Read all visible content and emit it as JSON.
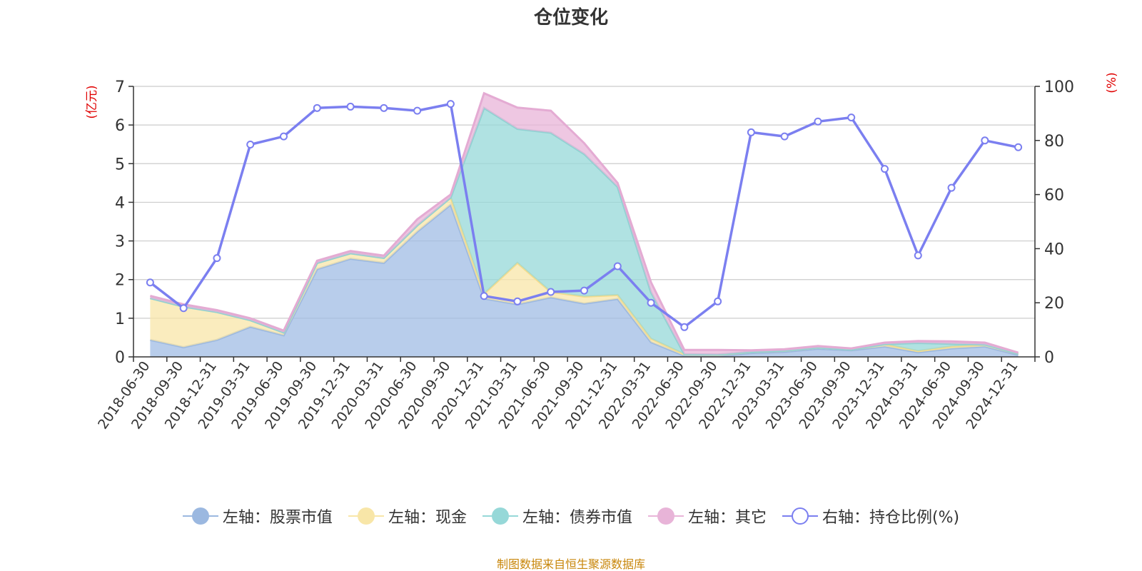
{
  "title": "仓位变化",
  "left_unit": "(亿元)",
  "right_unit": "(%)",
  "source_note": "制图数据来自恒生聚源数据库",
  "colors": {
    "stock": "#a0bce4",
    "cash": "#f8e6a8",
    "bond": "#96d8d8",
    "other": "#e8b4d8",
    "ratio": "#7b7ff0"
  },
  "legend": [
    {
      "key": "stock",
      "label": "左轴：股票市值",
      "color": "#9bb8e0",
      "style": "filled"
    },
    {
      "key": "cash",
      "label": "左轴：现金",
      "color": "#f8e6a8",
      "style": "filled"
    },
    {
      "key": "bond",
      "label": "左轴：债券市值",
      "color": "#96d8d8",
      "style": "filled"
    },
    {
      "key": "other",
      "label": "左轴：其它",
      "color": "#e8b4d8",
      "style": "filled"
    },
    {
      "key": "ratio",
      "label": "右轴：持仓比例(%)",
      "color": "#7b7ff0",
      "style": "hollow"
    }
  ],
  "chart_data": {
    "type": "area",
    "title": "仓位变化",
    "categories": [
      "2018-06-30",
      "2018-09-30",
      "2018-12-31",
      "2019-03-31",
      "2019-06-30",
      "2019-09-30",
      "2019-12-31",
      "2020-03-31",
      "2020-06-30",
      "2020-09-30",
      "2020-12-31",
      "2021-03-31",
      "2021-06-30",
      "2021-09-30",
      "2021-12-31",
      "2022-03-31",
      "2022-06-30",
      "2022-09-30",
      "2022-12-31",
      "2023-03-31",
      "2023-06-30",
      "2023-09-30",
      "2023-12-31",
      "2024-03-31",
      "2024-06-30",
      "2024-09-30",
      "2024-12-31"
    ],
    "left_axis": {
      "label": "(亿元)",
      "ylim": [
        0,
        7
      ],
      "ticks": [
        0,
        1,
        2,
        3,
        4,
        5,
        6,
        7
      ]
    },
    "right_axis": {
      "label": "(%)",
      "ylim": [
        0,
        100
      ],
      "ticks": [
        0,
        20,
        40,
        60,
        80,
        100
      ]
    },
    "grid": true,
    "legend_position": "bottom",
    "series": [
      {
        "name": "左轴：股票市值",
        "axis": "left",
        "type": "stacked-area",
        "values": [
          0.44,
          0.25,
          0.44,
          0.78,
          0.56,
          2.27,
          2.54,
          2.43,
          3.24,
          3.94,
          1.51,
          1.36,
          1.54,
          1.38,
          1.5,
          0.38,
          0.03,
          0.02,
          0.1,
          0.13,
          0.21,
          0.17,
          0.27,
          0.12,
          0.22,
          0.27,
          0.05
        ]
      },
      {
        "name": "左轴：现金",
        "axis": "left",
        "type": "stacked-area",
        "values": [
          1.08,
          1.05,
          0.72,
          0.17,
          0.07,
          0.16,
          0.14,
          0.13,
          0.16,
          0.18,
          0.12,
          1.07,
          0.14,
          0.18,
          0.1,
          0.09,
          0.04,
          0.04,
          0.03,
          0.03,
          0.03,
          0.02,
          0.06,
          0.03,
          0.05,
          0.05,
          0.03
        ]
      },
      {
        "name": "左轴：债券市值",
        "axis": "left",
        "type": "stacked-area",
        "values": [
          0,
          0,
          0,
          0,
          0,
          0,
          0,
          0,
          0,
          0,
          4.81,
          3.47,
          4.12,
          3.69,
          2.8,
          1.2,
          0,
          0,
          0,
          0,
          0,
          0,
          0,
          0.21,
          0.07,
          0,
          0
        ]
      },
      {
        "name": "左轴：其它",
        "axis": "left",
        "type": "stacked-area",
        "values": [
          0.06,
          0.06,
          0.05,
          0.05,
          0.05,
          0.06,
          0.06,
          0.06,
          0.16,
          0.08,
          0.38,
          0.55,
          0.57,
          0.28,
          0.1,
          0.26,
          0.11,
          0.12,
          0.04,
          0.04,
          0.04,
          0.03,
          0.04,
          0.05,
          0.06,
          0.05,
          0.03
        ]
      },
      {
        "name": "右轴：持仓比例(%)",
        "axis": "right",
        "type": "line",
        "values": [
          27.5,
          18.0,
          36.5,
          78.5,
          81.5,
          92.0,
          92.5,
          92.0,
          91.0,
          93.5,
          22.5,
          20.5,
          24.0,
          24.5,
          33.5,
          20.0,
          11.0,
          20.5,
          83.0,
          81.5,
          87.0,
          88.5,
          69.5,
          37.5,
          62.5,
          80.0,
          77.5
        ]
      }
    ]
  }
}
